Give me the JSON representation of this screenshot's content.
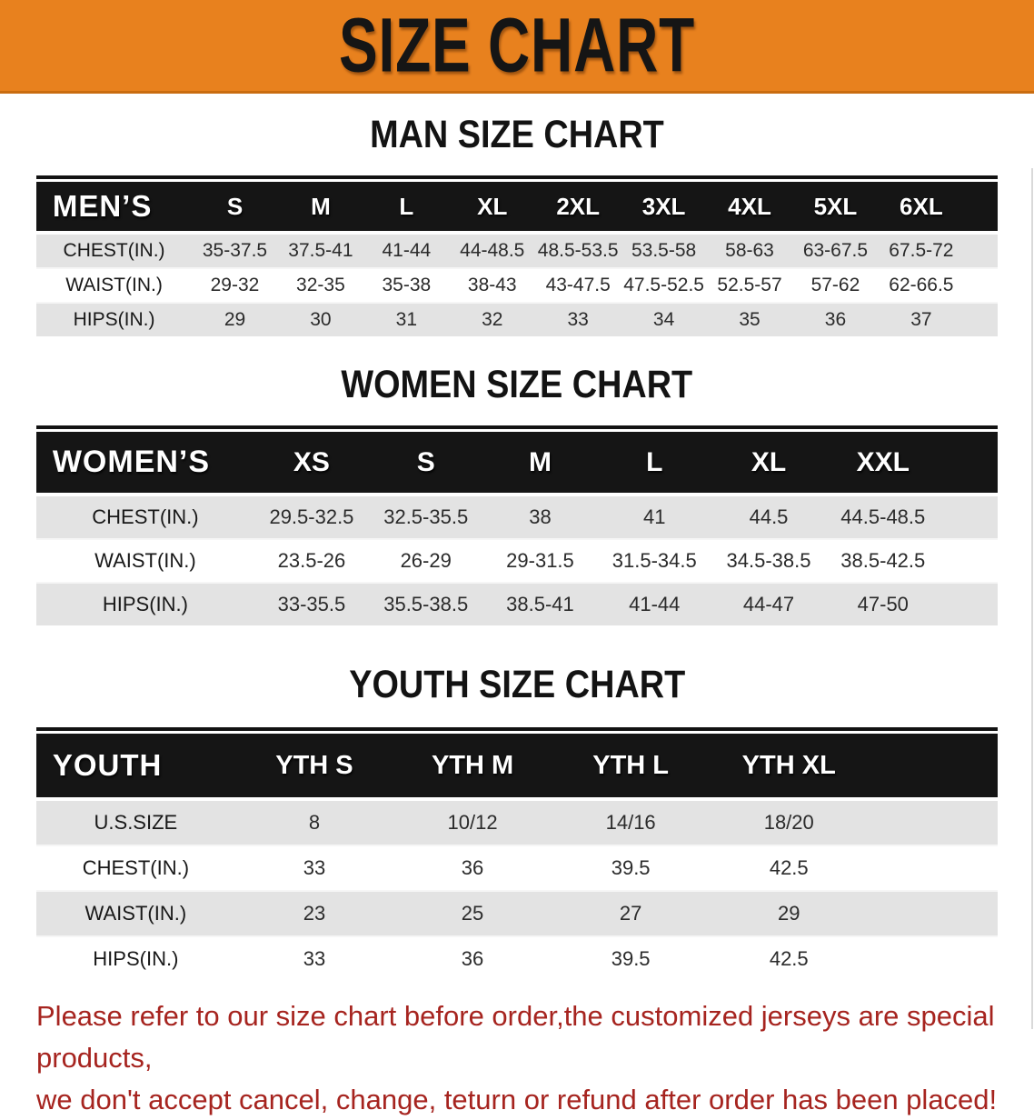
{
  "banner": {
    "title": "SIZE CHART",
    "bg_color": "#E8811E",
    "text_color": "#151515"
  },
  "colors": {
    "header_band": "#151515",
    "row_stripe": "#E3E3E3",
    "disclaimer_red": "#A6241F"
  },
  "sections": {
    "men": {
      "heading": "MAN SIZE CHART",
      "table": {
        "label": "MEN’S",
        "columns": [
          "S",
          "M",
          "L",
          "XL",
          "2XL",
          "3XL",
          "4XL",
          "5XL",
          "6XL"
        ],
        "rows": [
          {
            "label": "CHEST(IN.)",
            "values": [
              "35-37.5",
              "37.5-41",
              "41-44",
              "44-48.5",
              "48.5-53.5",
              "53.5-58",
              "58-63",
              "63-67.5",
              "67.5-72"
            ]
          },
          {
            "label": "WAIST(IN.)",
            "values": [
              "29-32",
              "32-35",
              "35-38",
              "38-43",
              "43-47.5",
              "47.5-52.5",
              "52.5-57",
              "57-62",
              "62-66.5"
            ]
          },
          {
            "label": "HIPS(IN.)",
            "values": [
              "29",
              "30",
              "31",
              "32",
              "33",
              "34",
              "35",
              "36",
              "37"
            ]
          }
        ]
      }
    },
    "women": {
      "heading": "WOMEN SIZE CHART",
      "table": {
        "label": "WOMEN’S",
        "columns": [
          "XS",
          "S",
          "M",
          "L",
          "XL",
          "XXL"
        ],
        "rows": [
          {
            "label": "CHEST(IN.)",
            "values": [
              "29.5-32.5",
              "32.5-35.5",
              "38",
              "41",
              "44.5",
              "44.5-48.5"
            ]
          },
          {
            "label": "WAIST(IN.)",
            "values": [
              "23.5-26",
              "26-29",
              "29-31.5",
              "31.5-34.5",
              "34.5-38.5",
              "38.5-42.5"
            ]
          },
          {
            "label": "HIPS(IN.)",
            "values": [
              "33-35.5",
              "35.5-38.5",
              "38.5-41",
              "41-44",
              "44-47",
              "47-50"
            ]
          }
        ]
      }
    },
    "youth": {
      "heading": "YOUTH SIZE CHART",
      "table": {
        "label": "YOUTH",
        "columns": [
          "YTH S",
          "YTH M",
          "YTH L",
          "YTH XL"
        ],
        "rows": [
          {
            "label": "U.S.SIZE",
            "values": [
              "8",
              "10/12",
              "14/16",
              "18/20"
            ]
          },
          {
            "label": "CHEST(IN.)",
            "values": [
              "33",
              "36",
              "39.5",
              "42.5"
            ]
          },
          {
            "label": "WAIST(IN.)",
            "values": [
              "23",
              "25",
              "27",
              "29"
            ]
          },
          {
            "label": "HIPS(IN.)",
            "values": [
              "33",
              "36",
              "39.5",
              "42.5"
            ]
          }
        ]
      }
    }
  },
  "disclaimer": {
    "lines": [
      "Please refer to our size chart before order,the customized jerseys are special products,",
      "we don't accept cancel, change, teturn or refund after order has been placed!"
    ]
  }
}
